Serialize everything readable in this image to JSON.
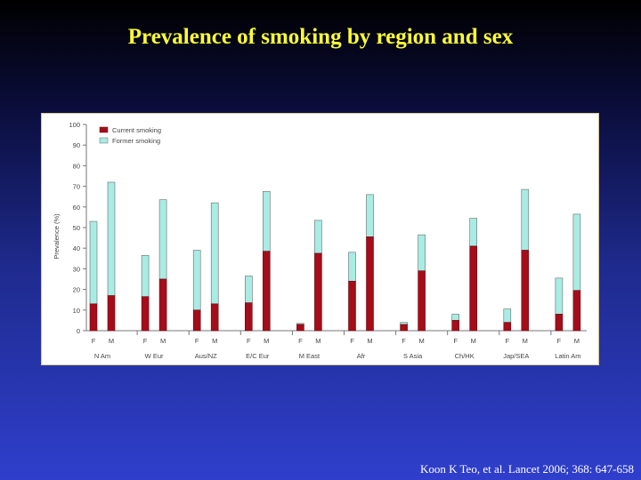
{
  "slide": {
    "title": "Prevalence of smoking by region and sex",
    "citation": "Koon K Teo, et al. Lancet 2006; 368: 647-658"
  },
  "chart_data": {
    "type": "bar",
    "stacked": true,
    "title": "",
    "ylabel": "Prevalence (%)",
    "ylim": [
      0,
      100
    ],
    "yticks": [
      0,
      10,
      20,
      30,
      40,
      50,
      60,
      70,
      80,
      90,
      100
    ],
    "grid": false,
    "legend_position": "top-left",
    "groups": [
      "N Am",
      "W Eur",
      "Aus/NZ",
      "E/C Eur",
      "M East",
      "Afr",
      "S Asia",
      "Ch/HK",
      "Jap/SEA",
      "Latin Am"
    ],
    "sexes": [
      "F",
      "M"
    ],
    "series": [
      {
        "name": "Current smoking",
        "color": "#a50d1a",
        "values": [
          13,
          17,
          16.5,
          25,
          10,
          13,
          13.5,
          38.5,
          3,
          37.5,
          24,
          45.5,
          3,
          29,
          5,
          41,
          4,
          39,
          8,
          19.5
        ]
      },
      {
        "name": "Former smoking",
        "color": "#a8ece4",
        "values": [
          40,
          55,
          20,
          38.5,
          29,
          49,
          13,
          29,
          0.5,
          16,
          14,
          20.5,
          1,
          17.5,
          3,
          13.5,
          6.5,
          29.5,
          17.5,
          37
        ]
      }
    ]
  }
}
